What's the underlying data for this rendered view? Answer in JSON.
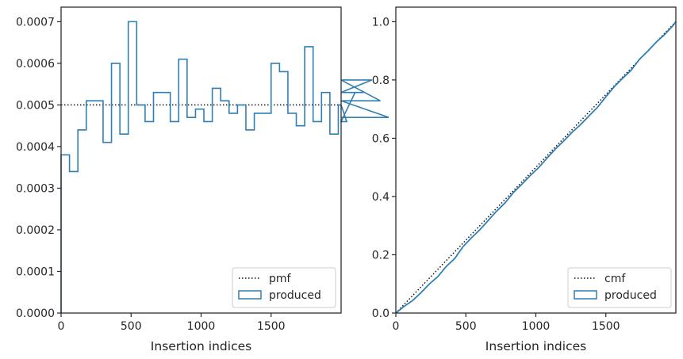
{
  "chart_data": [
    {
      "type": "histogram-step",
      "xlabel": "Insertion indices",
      "ylabel": "",
      "xlim": [
        0,
        2000
      ],
      "ylim": [
        0,
        0.000735
      ],
      "xticks": [
        0,
        500,
        1000,
        1500
      ],
      "xtick_labels": [
        "0",
        "500",
        "1000",
        "1500"
      ],
      "yticks": [
        0,
        0.0001,
        0.0002,
        0.0003,
        0.0004,
        0.0005,
        0.0006,
        0.0007
      ],
      "ytick_labels": [
        "0.0000",
        "0.0001",
        "0.0002",
        "0.0003",
        "0.0004",
        "0.0005",
        "0.0006",
        "0.0007"
      ],
      "legend_position": "lower right",
      "series": [
        {
          "name": "pmf",
          "kind": "reference-line",
          "style": "dotted",
          "color": "#111111",
          "value": 0.0005
        },
        {
          "name": "produced",
          "kind": "step-histogram",
          "color": "#2f7fb5",
          "bin_width": 60,
          "bin_edges_start": 0,
          "values": [
            0.00038,
            0.00034,
            0.00044,
            0.00051,
            0.00051,
            0.00041,
            0.0006,
            0.00043,
            0.0007,
            0.0005,
            0.00046,
            0.00053,
            0.00053,
            0.00046,
            0.00061,
            0.00047,
            0.00049,
            0.00046,
            0.00054,
            0.00051,
            0.00048,
            0.0005,
            0.00044,
            0.00048,
            0.00048,
            0.0006,
            0.00058,
            0.00048,
            0.00045,
            0.00064,
            0.00046,
            0.00053,
            0.00043,
            0.0005,
            0.00046,
            0.00053,
            0.00053,
            0.00056,
            0.00051,
            0.00047
          ]
        }
      ]
    },
    {
      "type": "line",
      "xlabel": "Insertion indices",
      "ylabel": "",
      "xlim": [
        0,
        2000
      ],
      "ylim": [
        0,
        1.05
      ],
      "xticks": [
        0,
        500,
        1000,
        1500
      ],
      "xtick_labels": [
        "0",
        "500",
        "1000",
        "1500"
      ],
      "yticks": [
        0,
        0.2,
        0.4,
        0.6,
        0.8,
        1.0
      ],
      "ytick_labels": [
        "0.0",
        "0.2",
        "0.4",
        "0.6",
        "0.8",
        "1.0"
      ],
      "legend_position": "lower right",
      "series": [
        {
          "name": "cmf",
          "kind": "reference-line",
          "style": "dotted",
          "color": "#111111",
          "points": [
            [
              0,
              0
            ],
            [
              2000,
              1.0
            ]
          ]
        },
        {
          "name": "produced",
          "kind": "step-cumulative",
          "color": "#2f7fb5",
          "x": [
            0,
            60,
            120,
            180,
            240,
            300,
            360,
            420,
            480,
            540,
            600,
            660,
            720,
            780,
            840,
            900,
            960,
            1020,
            1080,
            1140,
            1200,
            1260,
            1320,
            1380,
            1440,
            1500,
            1560,
            1620,
            1680,
            1740,
            1800,
            1860,
            1920,
            1980,
            2000
          ],
          "y": [
            0.0,
            0.023,
            0.043,
            0.07,
            0.1,
            0.125,
            0.16,
            0.187,
            0.228,
            0.258,
            0.286,
            0.318,
            0.35,
            0.378,
            0.414,
            0.442,
            0.472,
            0.499,
            0.532,
            0.563,
            0.591,
            0.621,
            0.647,
            0.677,
            0.706,
            0.742,
            0.777,
            0.806,
            0.833,
            0.871,
            0.899,
            0.93,
            0.956,
            0.987,
            1.0
          ]
        }
      ]
    }
  ]
}
